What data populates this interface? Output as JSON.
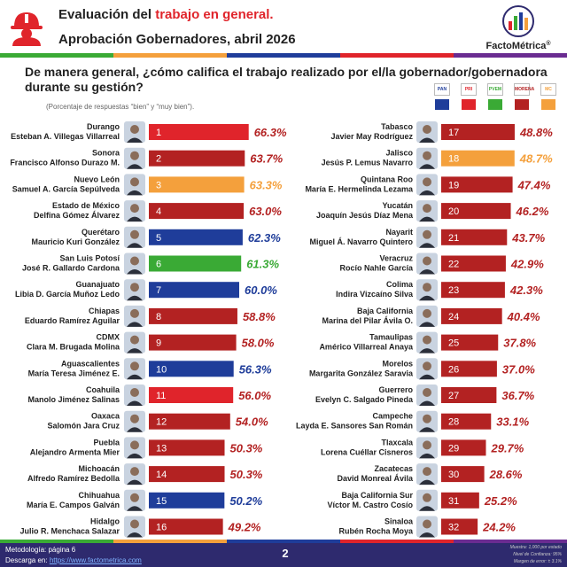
{
  "header": {
    "title_prefix": "Evaluación del ",
    "title_highlight": "trabajo en general.",
    "subtitle": "Aprobación Gobernadores, abril 2026",
    "brand": "FactoMétrica",
    "brand_trademark": "®"
  },
  "question": "De manera general, ¿cómo califica el trabajo realizado por el/la gobernador/gobernadora durante su gestión?",
  "note": "(Porcentaje de respuestas “bien” y “muy bien”).",
  "legend": {
    "parties": [
      {
        "logo": "PAN",
        "color": "#1f3d9a"
      },
      {
        "logo": "PRI",
        "color": "#e0242b"
      },
      {
        "logo": "PVEM",
        "color": "#3aaa35"
      },
      {
        "logo": "MORENA",
        "color": "#b32222"
      },
      {
        "logo": "MC",
        "color": "#f4a03c"
      }
    ]
  },
  "colors": {
    "PAN": "#1f3d9a",
    "PRI": "#e0242b",
    "PVEM": "#3aaa35",
    "MORENA": "#b32222",
    "MC": "#f4a03c",
    "value_text_default": "#b32222",
    "footer_bg": "#2e2a6e"
  },
  "chart_data": {
    "type": "bar",
    "unit": "%",
    "xlim": [
      0,
      100
    ],
    "ranking": [
      {
        "rank": "1",
        "state": "Durango",
        "governor": "Esteban A. Villegas Villarreal",
        "party": "PRI",
        "value": 66.3,
        "label": "66.3%"
      },
      {
        "rank": "2",
        "state": "Sonora",
        "governor": "Francisco Alfonso Durazo M.",
        "party": "MORENA",
        "value": 63.7,
        "label": "63.7%"
      },
      {
        "rank": "3",
        "state": "Nuevo León",
        "governor": "Samuel A. García Sepúlveda",
        "party": "MC",
        "value": 63.3,
        "label": "63.3%"
      },
      {
        "rank": "4",
        "state": "Estado de México",
        "governor": "Delfina Gómez Álvarez",
        "party": "MORENA",
        "value": 63.0,
        "label": "63.0%"
      },
      {
        "rank": "5",
        "state": "Querétaro",
        "governor": "Mauricio Kuri González",
        "party": "PAN",
        "value": 62.3,
        "label": "62.3%"
      },
      {
        "rank": "6",
        "state": "San Luis Potosí",
        "governor": "José R. Gallardo Cardona",
        "party": "PVEM",
        "value": 61.3,
        "label": "61.3%"
      },
      {
        "rank": "7",
        "state": "Guanajuato",
        "governor": "Libia D. García Muñoz Ledo",
        "party": "PAN",
        "value": 60.0,
        "label": "60.0%"
      },
      {
        "rank": "8",
        "state": "Chiapas",
        "governor": "Eduardo Ramírez Aguilar",
        "party": "MORENA",
        "value": 58.8,
        "label": "58.8%"
      },
      {
        "rank": "9",
        "state": "CDMX",
        "governor": "Clara M. Brugada Molina",
        "party": "MORENA",
        "value": 58.0,
        "label": "58.0%"
      },
      {
        "rank": "10",
        "state": "Aguascalientes",
        "governor": "María Teresa Jiménez E.",
        "party": "PAN",
        "value": 56.3,
        "label": "56.3%"
      },
      {
        "rank": "11",
        "state": "Coahuila",
        "governor": "Manolo Jiménez Salinas",
        "party": "PRI",
        "value": 56.0,
        "label": "56.0%"
      },
      {
        "rank": "12",
        "state": "Oaxaca",
        "governor": "Salomón Jara Cruz",
        "party": "MORENA",
        "value": 54.0,
        "label": "54.0%"
      },
      {
        "rank": "13",
        "state": "Puebla",
        "governor": "Alejandro Armenta Mier",
        "party": "MORENA",
        "value": 50.3,
        "label": "50.3%"
      },
      {
        "rank": "14",
        "state": "Michoacán",
        "governor": "Alfredo Ramírez Bedolla",
        "party": "MORENA",
        "value": 50.3,
        "label": "50.3%"
      },
      {
        "rank": "15",
        "state": "Chihuahua",
        "governor": "María E. Campos Galván",
        "party": "PAN",
        "value": 50.2,
        "label": "50.2%"
      },
      {
        "rank": "16",
        "state": "Hidalgo",
        "governor": "Julio R. Menchaca Salazar",
        "party": "MORENA",
        "value": 49.2,
        "label": "49.2%"
      },
      {
        "rank": "17",
        "state": "Tabasco",
        "governor": "Javier May Rodríguez",
        "party": "MORENA",
        "value": 48.8,
        "label": "48.8%"
      },
      {
        "rank": "18",
        "state": "Jalisco",
        "governor": "Jesús P. Lemus Navarro",
        "party": "MC",
        "value": 48.7,
        "label": "48.7%"
      },
      {
        "rank": "19",
        "state": "Quintana Roo",
        "governor": "María E. Hermelinda Lezama",
        "party": "MORENA",
        "value": 47.4,
        "label": "47.4%"
      },
      {
        "rank": "20",
        "state": "Yucatán",
        "governor": "Joaquín Jesús Díaz Mena",
        "party": "MORENA",
        "value": 46.2,
        "label": "46.2%"
      },
      {
        "rank": "21",
        "state": "Nayarit",
        "governor": "Miguel Á. Navarro Quintero",
        "party": "MORENA",
        "value": 43.7,
        "label": "43.7%"
      },
      {
        "rank": "22",
        "state": "Veracruz",
        "governor": "Rocío Nahle García",
        "party": "MORENA",
        "value": 42.9,
        "label": "42.9%"
      },
      {
        "rank": "23",
        "state": "Colima",
        "governor": "Indira Vizcaíno Silva",
        "party": "MORENA",
        "value": 42.3,
        "label": "42.3%"
      },
      {
        "rank": "24",
        "state": "Baja California",
        "governor": "Marina del Pilar Ávila O.",
        "party": "MORENA",
        "value": 40.4,
        "label": "40.4%"
      },
      {
        "rank": "25",
        "state": "Tamaulipas",
        "governor": "Américo Villarreal Anaya",
        "party": "MORENA",
        "value": 37.8,
        "label": "37.8%"
      },
      {
        "rank": "26",
        "state": "Morelos",
        "governor": "Margarita González Saravia",
        "party": "MORENA",
        "value": 37.0,
        "label": "37.0%"
      },
      {
        "rank": "27",
        "state": "Guerrero",
        "governor": "Evelyn C. Salgado Pineda",
        "party": "MORENA",
        "value": 36.7,
        "label": "36.7%"
      },
      {
        "rank": "28",
        "state": "Campeche",
        "governor": "Layda E. Sansores San Román",
        "party": "MORENA",
        "value": 33.1,
        "label": "33.1%"
      },
      {
        "rank": "29",
        "state": "Tlaxcala",
        "governor": "Lorena Cuéllar Cisneros",
        "party": "MORENA",
        "value": 29.7,
        "label": "29.7%"
      },
      {
        "rank": "30",
        "state": "Zacatecas",
        "governor": "David Monreal Ávila",
        "party": "MORENA",
        "value": 28.6,
        "label": "28.6%"
      },
      {
        "rank": "31",
        "state": "Baja California Sur",
        "governor": "Víctor M. Castro Cosío",
        "party": "MORENA",
        "value": 25.2,
        "label": "25.2%"
      },
      {
        "rank": "32",
        "state": "Sinaloa",
        "governor": "Rubén Rocha Moya",
        "party": "MORENA",
        "value": 24.2,
        "label": "24.2%"
      }
    ]
  },
  "footer": {
    "methodology": "Metodología: página 6",
    "download_prefix": "Descarga en: ",
    "download_link": "https://www.factometrica.com",
    "page": "2",
    "sample_line1": "Muestra: 1,000 por estado",
    "sample_line2": "Nivel de Confianza: 95%",
    "sample_line3": "Margen de error: ± 3.1%"
  }
}
